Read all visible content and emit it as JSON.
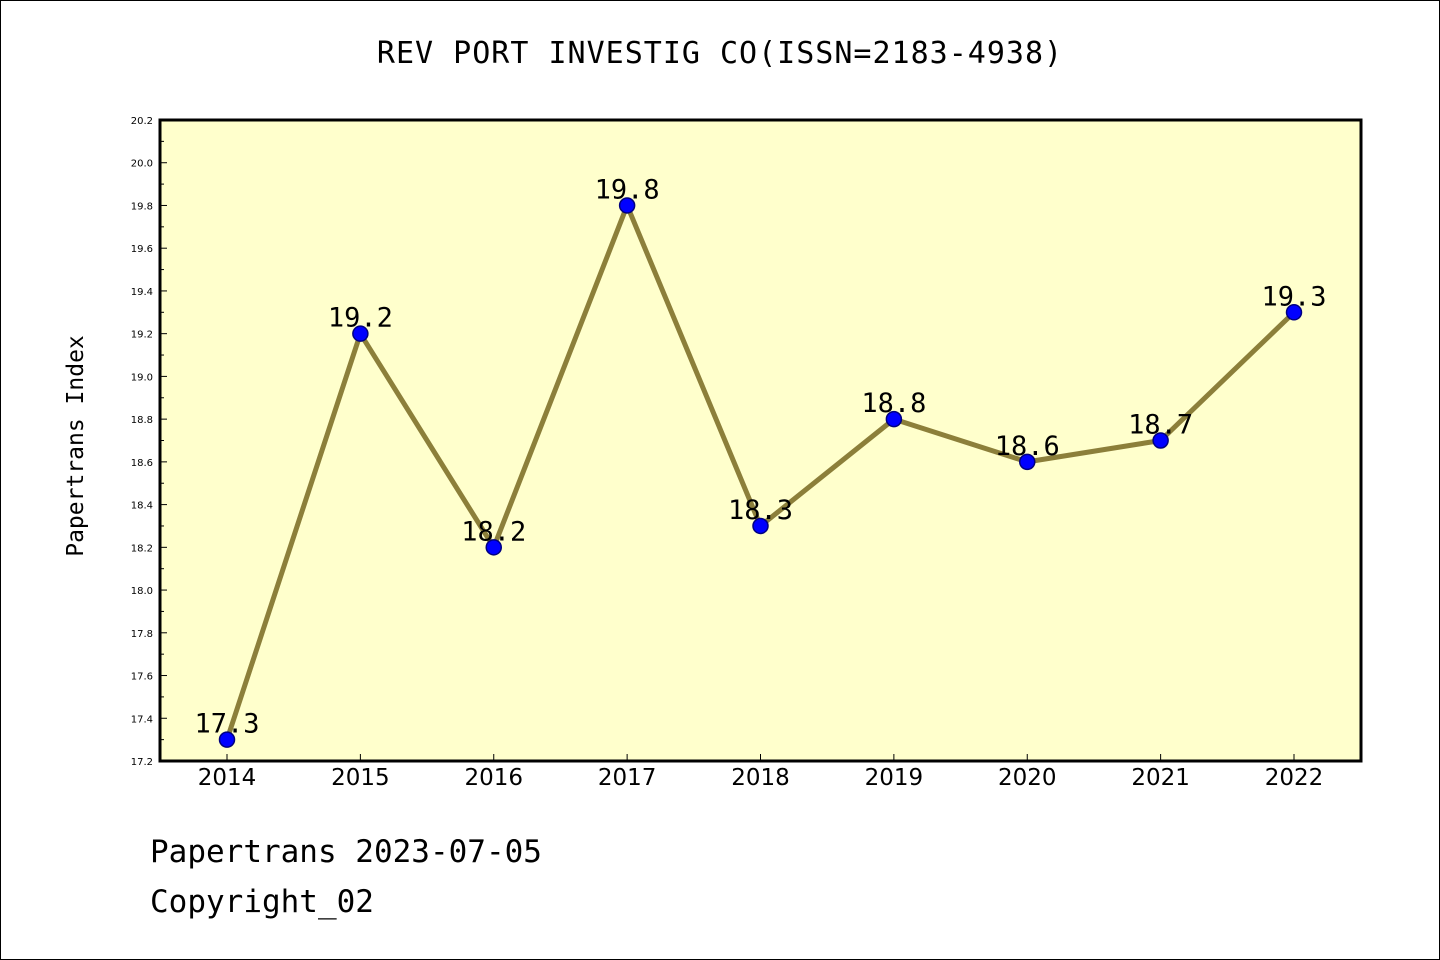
{
  "colors": {
    "plot_background": "#ffffcc",
    "line": "#8c7f3a",
    "marker_fill": "#0000ff",
    "marker_edge": "#000080",
    "axis": "#000000"
  },
  "chart_data": {
    "type": "line",
    "title": "REV PORT INVESTIG CO(ISSN=2183-4938)",
    "xlabel": "",
    "ylabel": "Papertrans Index",
    "x": [
      "2014",
      "2015",
      "2016",
      "2017",
      "2018",
      "2019",
      "2020",
      "2021",
      "2022"
    ],
    "series": [
      {
        "values": [
          17.3,
          19.2,
          18.2,
          19.8,
          18.3,
          18.8,
          18.6,
          18.7,
          19.3
        ],
        "data_labels": [
          "17.3",
          "19.2",
          "18.2",
          "19.8",
          "18.3",
          "18.8",
          "18.6",
          "18.7",
          "19.3"
        ]
      }
    ],
    "ylim": [
      17.2,
      20.2
    ],
    "y_ticks": [
      "17.2",
      "17.4",
      "17.6",
      "17.8",
      "18.0",
      "18.2",
      "18.4",
      "18.6",
      "18.8",
      "19.0",
      "19.2",
      "19.4",
      "19.6",
      "19.8",
      "20.0",
      "20.2"
    ],
    "grid": false,
    "legend": "none"
  },
  "footer": {
    "line1": "Papertrans 2023-07-05",
    "line2": "Copyright_02"
  }
}
